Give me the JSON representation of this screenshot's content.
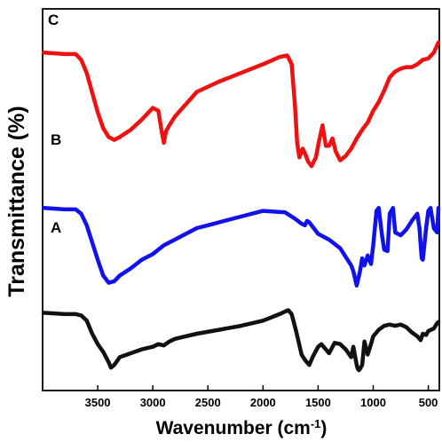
{
  "chart_data": {
    "type": "line",
    "xlabel": "Wavenumber (cm",
    "xlabel_sup": "-1",
    "xlabel_close": ")",
    "ylabel": "Transmittance (%)",
    "xlim": [
      4000,
      400
    ],
    "x_reversed": true,
    "y_ticks_shown": false,
    "grid": false,
    "xticks": [
      3500,
      3000,
      2500,
      2000,
      1500,
      1000,
      500
    ],
    "series": [
      {
        "name": "C",
        "color": "#ee1111",
        "x": [
          4000,
          3800,
          3700,
          3650,
          3600,
          3500,
          3450,
          3400,
          3350,
          3300,
          3200,
          3100,
          3050,
          3000,
          2950,
          2920,
          2900,
          2880,
          2850,
          2800,
          2600,
          2400,
          2200,
          2000,
          1850,
          1780,
          1740,
          1710,
          1690,
          1670,
          1640,
          1620,
          1590,
          1560,
          1520,
          1490,
          1460,
          1430,
          1400,
          1370,
          1340,
          1300,
          1250,
          1200,
          1150,
          1100,
          1050,
          1000,
          950,
          900,
          850,
          800,
          750,
          700,
          650,
          600,
          550,
          500,
          450,
          420,
          400
        ],
        "y": [
          84,
          83,
          83,
          79,
          70,
          43,
          32,
          26,
          24,
          26,
          31,
          38,
          42,
          46,
          44,
          30,
          22,
          30,
          34,
          40,
          57,
          64,
          70,
          76,
          81,
          82,
          76,
          48,
          22,
          12,
          18,
          15,
          9,
          6,
          12,
          24,
          34,
          20,
          20,
          25,
          16,
          10,
          13,
          18,
          25,
          31,
          36,
          44,
          50,
          58,
          67,
          71,
          73,
          74,
          74,
          76,
          79,
          80,
          84,
          89,
          91
        ]
      },
      {
        "name": "B",
        "color": "#1111ee",
        "x": [
          4000,
          3800,
          3700,
          3650,
          3600,
          3500,
          3450,
          3400,
          3350,
          3300,
          3200,
          3100,
          3000,
          2900,
          2800,
          2600,
          2500,
          2400,
          2200,
          2000,
          1800,
          1700,
          1650,
          1620,
          1600,
          1580,
          1550,
          1500,
          1400,
          1300,
          1250,
          1200,
          1180,
          1150,
          1120,
          1100,
          1080,
          1050,
          1020,
          1000,
          970,
          950,
          920,
          900,
          870,
          850,
          820,
          800,
          750,
          700,
          650,
          600,
          580,
          560,
          550,
          520,
          500,
          480,
          450,
          420,
          400
        ],
        "y": [
          64,
          63,
          63,
          60,
          52,
          28,
          17,
          12,
          13,
          17,
          22,
          28,
          32,
          38,
          42,
          50,
          52,
          54,
          58,
          62,
          61,
          56,
          53,
          52,
          55,
          54,
          51,
          46,
          42,
          36,
          30,
          24,
          20,
          10,
          20,
          29,
          24,
          31,
          25,
          38,
          62,
          64,
          45,
          35,
          34,
          60,
          64,
          47,
          45,
          49,
          55,
          60,
          50,
          29,
          28,
          50,
          62,
          64,
          50,
          47,
          64
        ]
      },
      {
        "name": "A",
        "color": "#111111",
        "x": [
          4000,
          3800,
          3700,
          3650,
          3600,
          3550,
          3500,
          3450,
          3400,
          3380,
          3350,
          3300,
          3200,
          3100,
          3000,
          2950,
          2900,
          2850,
          2800,
          2600,
          2400,
          2200,
          2000,
          1850,
          1800,
          1770,
          1740,
          1700,
          1650,
          1620,
          1600,
          1580,
          1550,
          1500,
          1470,
          1450,
          1400,
          1350,
          1300,
          1250,
          1200,
          1180,
          1150,
          1140,
          1130,
          1120,
          1100,
          1080,
          1050,
          1020,
          1000,
          950,
          900,
          850,
          800,
          750,
          700,
          650,
          600,
          570,
          550,
          520,
          500,
          450,
          420,
          400
        ],
        "y": [
          48,
          47,
          47,
          46,
          42,
          32,
          24,
          18,
          10,
          6,
          8,
          14,
          17,
          20,
          22,
          24,
          23,
          26,
          28,
          32,
          35,
          38,
          42,
          47,
          49,
          50,
          47,
          34,
          16,
          12,
          10,
          8,
          14,
          22,
          24,
          22,
          17,
          25,
          24,
          20,
          14,
          22,
          8,
          5,
          4,
          5,
          8,
          26,
          16,
          24,
          30,
          35,
          38,
          39,
          38,
          39,
          37,
          33,
          30,
          27,
          32,
          31,
          34,
          36,
          40,
          41
        ]
      }
    ]
  }
}
